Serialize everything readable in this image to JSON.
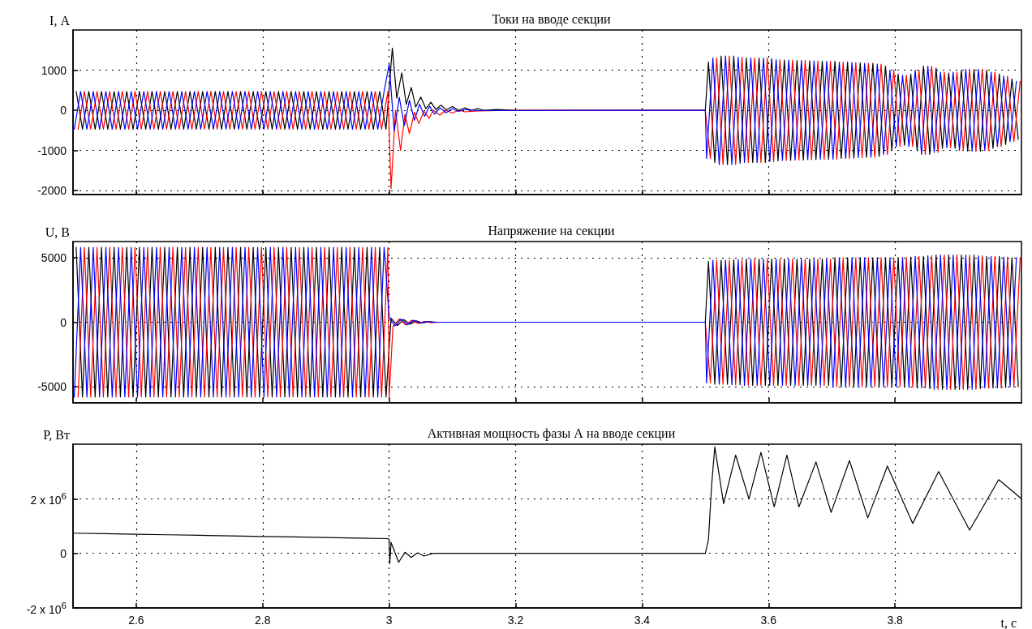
{
  "chart_data": [
    {
      "type": "line",
      "title": "Токи на вводе секции",
      "ylabel": "I, А",
      "xlim": [
        2.5,
        4.0
      ],
      "xticks": [
        2.6,
        2.8,
        3,
        3.2,
        3.4,
        3.6,
        3.8
      ],
      "ylim": [
        -2100,
        2000
      ],
      "yticks": [
        -2000,
        -1000,
        0,
        1000
      ],
      "grid": true,
      "marker": "none",
      "line_style": "solid",
      "tick_labels": "y",
      "series": [
        {
          "color": "#000000",
          "x": [
            2.505,
            2.515,
            2.525,
            2.535,
            2.545,
            2.555,
            2.565,
            2.575,
            2.585,
            2.595,
            2.605,
            2.615,
            2.625,
            2.635,
            2.645,
            2.655,
            2.665,
            2.675,
            2.685,
            2.695,
            2.705,
            2.715,
            2.725,
            2.735,
            2.745,
            2.755,
            2.765,
            2.775,
            2.785,
            2.795,
            2.805,
            2.815,
            2.825,
            2.835,
            2.845,
            2.855,
            2.865,
            2.875,
            2.885,
            2.895,
            2.905,
            2.915,
            2.925,
            2.935,
            2.945,
            2.955,
            2.965,
            2.975,
            2.985,
            2.995,
            3.005,
            3.012,
            3.02,
            3.027,
            3.035,
            3.042,
            3.05,
            3.058,
            3.066,
            3.074,
            3.082,
            3.09,
            3.1,
            3.11,
            3.12,
            3.13,
            3.14,
            3.15,
            3.17,
            3.2,
            3.5,
            3.505,
            3.515,
            3.525,
            3.535,
            3.545,
            3.555,
            3.565,
            3.575,
            3.585,
            3.595,
            3.605,
            3.615,
            3.625,
            3.635,
            3.645,
            3.655,
            3.665,
            3.675,
            3.685,
            3.695,
            3.705,
            3.715,
            3.725,
            3.735,
            3.745,
            3.755,
            3.765,
            3.775,
            3.785,
            3.795,
            3.805,
            3.815,
            3.825,
            3.835,
            3.845,
            3.855,
            3.865,
            3.875,
            3.885,
            3.895,
            3.905,
            3.915,
            3.925,
            3.935,
            3.945,
            3.955,
            3.965,
            3.975,
            3.985,
            3.995
          ],
          "values": [
            470,
            -470,
            470,
            -470,
            470,
            -470,
            470,
            -470,
            470,
            -470,
            470,
            -470,
            470,
            -470,
            470,
            -470,
            470,
            -470,
            470,
            -470,
            470,
            -470,
            470,
            -470,
            470,
            -470,
            470,
            -470,
            470,
            -470,
            470,
            -470,
            470,
            -470,
            470,
            -470,
            470,
            -470,
            470,
            -470,
            470,
            -470,
            470,
            -470,
            470,
            -470,
            470,
            -470,
            470,
            -470,
            1550,
            300,
            930,
            150,
            570,
            80,
            330,
            40,
            200,
            20,
            130,
            10,
            90,
            0,
            60,
            0,
            40,
            0,
            20,
            0,
            0,
            1200,
            -1300,
            1350,
            -1350,
            1350,
            -1320,
            1300,
            -1300,
            1300,
            -1300,
            1280,
            -1260,
            1250,
            -1250,
            1240,
            -1240,
            1230,
            -1230,
            1220,
            -1220,
            1220,
            -1200,
            1200,
            -1190,
            1180,
            -1170,
            1170,
            -1150,
            1100,
            -1000,
            900,
            -870,
            900,
            -1000,
            1100,
            -1100,
            1050,
            -950,
            930,
            -950,
            1000,
            -1020,
            1020,
            -1020,
            1000,
            -950,
            900,
            -850,
            780,
            -720
          ]
        },
        {
          "color": "#ff0000",
          "x": [
            2.508,
            2.518,
            2.528,
            2.538,
            2.548,
            2.558,
            2.568,
            2.578,
            2.588,
            2.598,
            2.608,
            2.618,
            2.628,
            2.638,
            2.648,
            2.658,
            2.668,
            2.678,
            2.688,
            2.698,
            2.708,
            2.718,
            2.728,
            2.738,
            2.748,
            2.758,
            2.768,
            2.778,
            2.788,
            2.798,
            2.808,
            2.818,
            2.828,
            2.838,
            2.848,
            2.858,
            2.868,
            2.878,
            2.888,
            2.898,
            2.908,
            2.918,
            2.928,
            2.938,
            2.948,
            2.958,
            2.968,
            2.978,
            2.988,
            2.998,
            3.003,
            3.01,
            3.018,
            3.025,
            3.032,
            3.04,
            3.047,
            3.055,
            3.063,
            3.07,
            3.08,
            3.09,
            3.1,
            3.11,
            3.12,
            3.14,
            3.17,
            3.2,
            3.5,
            3.508,
            3.518,
            3.528,
            3.538,
            3.548,
            3.558,
            3.568,
            3.578,
            3.588,
            3.598,
            3.608,
            3.618,
            3.628,
            3.638,
            3.648,
            3.658,
            3.668,
            3.678,
            3.688,
            3.698,
            3.708,
            3.718,
            3.728,
            3.738,
            3.748,
            3.758,
            3.768,
            3.778,
            3.788,
            3.798,
            3.808,
            3.818,
            3.828,
            3.838,
            3.848,
            3.858,
            3.868,
            3.878,
            3.888,
            3.898,
            3.908,
            3.918,
            3.928,
            3.938,
            3.948,
            3.958,
            3.968,
            3.978,
            3.988,
            3.998
          ],
          "values": [
            -470,
            470,
            -470,
            470,
            -470,
            470,
            -470,
            470,
            -470,
            470,
            -470,
            470,
            -470,
            470,
            -470,
            470,
            -470,
            470,
            -470,
            470,
            -470,
            470,
            -470,
            470,
            -470,
            470,
            -470,
            470,
            -470,
            470,
            -470,
            470,
            -470,
            470,
            -470,
            470,
            -470,
            470,
            -470,
            470,
            -470,
            470,
            -470,
            470,
            -470,
            470,
            -470,
            470,
            -470,
            470,
            -1950,
            0,
            -1000,
            -100,
            -580,
            -50,
            -330,
            -20,
            -200,
            0,
            -120,
            0,
            -70,
            0,
            -40,
            -20,
            -10,
            0,
            0,
            -1200,
            1300,
            -1350,
            1350,
            -1350,
            1320,
            -1300,
            1300,
            -1300,
            1300,
            -1280,
            1260,
            -1250,
            1250,
            -1240,
            1240,
            -1230,
            1230,
            -1220,
            1220,
            -1220,
            1200,
            -1200,
            1190,
            -1180,
            1170,
            -1170,
            1150,
            -1100,
            1000,
            -900,
            870,
            -900,
            1000,
            -1100,
            1100,
            -1050,
            950,
            -930,
            950,
            -1000,
            1020,
            -1020,
            1020,
            -1000,
            950,
            -900,
            850,
            -780,
            720
          ]
        },
        {
          "color": "#0000ff",
          "x": [
            2.502,
            2.512,
            2.522,
            2.532,
            2.542,
            2.552,
            2.562,
            2.572,
            2.582,
            2.592,
            2.602,
            2.612,
            2.622,
            2.632,
            2.642,
            2.652,
            2.662,
            2.672,
            2.682,
            2.692,
            2.702,
            2.712,
            2.722,
            2.732,
            2.742,
            2.752,
            2.762,
            2.772,
            2.782,
            2.792,
            2.802,
            2.812,
            2.822,
            2.832,
            2.842,
            2.852,
            2.862,
            2.872,
            2.882,
            2.892,
            2.902,
            2.912,
            2.922,
            2.932,
            2.942,
            2.952,
            2.962,
            2.972,
            2.982,
            2.992,
            3.0,
            3.008,
            3.016,
            3.024,
            3.032,
            3.04,
            3.048,
            3.056,
            3.064,
            3.072,
            3.08,
            3.09,
            3.1,
            3.11,
            3.12,
            3.14,
            3.5,
            3.502,
            3.512,
            3.522,
            3.532,
            3.542,
            3.552,
            3.562,
            3.572,
            3.582,
            3.592,
            3.602,
            3.612,
            3.622,
            3.632,
            3.642,
            3.652,
            3.662,
            3.672,
            3.682,
            3.692,
            3.702,
            3.712,
            3.722,
            3.732,
            3.742,
            3.752,
            3.762,
            3.772,
            3.782,
            3.792,
            3.802,
            3.812,
            3.822,
            3.832,
            3.842,
            3.852,
            3.862,
            3.872,
            3.882,
            3.892,
            3.902,
            3.912,
            3.922,
            3.932,
            3.942,
            3.952,
            3.962,
            3.972,
            3.982,
            3.992
          ],
          "values": [
            -470,
            470,
            -470,
            470,
            -470,
            470,
            -470,
            470,
            -470,
            470,
            -470,
            470,
            -470,
            470,
            -470,
            470,
            -470,
            470,
            -470,
            470,
            -470,
            470,
            -470,
            470,
            -470,
            470,
            -470,
            470,
            -470,
            470,
            -470,
            470,
            -470,
            470,
            -470,
            470,
            -470,
            470,
            -470,
            470,
            -470,
            470,
            -470,
            470,
            -470,
            470,
            -470,
            470,
            -470,
            470,
            1150,
            -520,
            320,
            -380,
            250,
            -250,
            150,
            -150,
            100,
            -100,
            60,
            -60,
            40,
            -30,
            20,
            -10,
            0,
            -1200,
            1300,
            -1350,
            1350,
            -1350,
            1320,
            -1300,
            1300,
            -1300,
            1300,
            -1280,
            1260,
            -1250,
            1250,
            -1240,
            1240,
            -1230,
            1230,
            -1220,
            1220,
            -1220,
            1200,
            -1200,
            1190,
            -1180,
            1170,
            -1170,
            1150,
            -1100,
            1000,
            -900,
            870,
            -900,
            1000,
            -1100,
            1100,
            -1050,
            950,
            -930,
            950,
            -1000,
            1020,
            -1020,
            1020,
            -1000,
            950,
            -900,
            850,
            -780,
            720
          ]
        }
      ]
    },
    {
      "type": "line",
      "title": "Напряжение на секции",
      "ylabel": "U, В",
      "xlim": [
        2.5,
        4.0
      ],
      "xticks": [
        2.6,
        2.8,
        3,
        3.2,
        3.4,
        3.6,
        3.8
      ],
      "ylim": [
        -6250,
        6250
      ],
      "yticks": [
        -5000,
        0,
        5000
      ],
      "grid": true,
      "marker": "none",
      "line_style": "solid",
      "tick_labels": "y",
      "series": [
        {
          "color": "#000000",
          "x": [
            2.505,
            2.515,
            2.525,
            2.535,
            2.545,
            2.555,
            2.565,
            2.575,
            2.585,
            2.595,
            2.605,
            2.615,
            2.625,
            2.635,
            2.645,
            2.655,
            2.665,
            2.675,
            2.685,
            2.695,
            2.705,
            2.715,
            2.725,
            2.735,
            2.745,
            2.755,
            2.765,
            2.775,
            2.785,
            2.795,
            2.805,
            2.815,
            2.825,
            2.835,
            2.845,
            2.855,
            2.865,
            2.875,
            2.885,
            2.895,
            2.905,
            2.915,
            2.925,
            2.935,
            2.945,
            2.955,
            2.965,
            2.975,
            2.985,
            2.995,
            3.003,
            3.013,
            3.023,
            3.033,
            3.043,
            3.053,
            3.063,
            3.075,
            3.5,
            3.505,
            3.515,
            3.525,
            3.535,
            3.545,
            3.555,
            3.565,
            3.575,
            3.585,
            3.595,
            3.605,
            3.615,
            3.625,
            3.635,
            3.645,
            3.655,
            3.665,
            3.675,
            3.685,
            3.695,
            3.705,
            3.715,
            3.725,
            3.735,
            3.745,
            3.755,
            3.765,
            3.775,
            3.785,
            3.795,
            3.805,
            3.815,
            3.825,
            3.835,
            3.845,
            3.855,
            3.865,
            3.875,
            3.885,
            3.895,
            3.905,
            3.915,
            3.925,
            3.935,
            3.945,
            3.955,
            3.965,
            3.975,
            3.985,
            3.995
          ],
          "values": [
            5800,
            -5800,
            5800,
            -5800,
            5800,
            -5800,
            5800,
            -5800,
            5800,
            -5800,
            5800,
            -5800,
            5800,
            -5800,
            5800,
            -5800,
            5800,
            -5800,
            5800,
            -5800,
            5800,
            -5800,
            5800,
            -5800,
            5800,
            -5800,
            5800,
            -5800,
            5800,
            -5800,
            5800,
            -5800,
            5800,
            -5800,
            5800,
            -5800,
            5800,
            -5800,
            5800,
            -5800,
            5800,
            -5800,
            5800,
            -5800,
            5800,
            -5800,
            5800,
            -5800,
            5800,
            -5800,
            300,
            -250,
            200,
            -150,
            100,
            -60,
            40,
            0,
            0,
            4700,
            -4800,
            4800,
            -4800,
            4850,
            -4850,
            4900,
            -4900,
            4900,
            -4900,
            4900,
            -4900,
            4900,
            -4900,
            4900,
            -4900,
            4900,
            -4900,
            4900,
            -4900,
            5000,
            -5000,
            5000,
            -5000,
            5000,
            -5000,
            5000,
            -5000,
            5000,
            -5000,
            5000,
            -5000,
            5050,
            -5100,
            5100,
            -5150,
            5200,
            -5200,
            5200,
            -5200,
            5200,
            -5200,
            5200,
            -5150,
            5100,
            -5100,
            5100,
            -5050,
            5000,
            -5000
          ]
        },
        {
          "color": "#ff0000",
          "x": [
            2.508,
            2.518,
            2.528,
            2.538,
            2.548,
            2.558,
            2.568,
            2.578,
            2.588,
            2.598,
            2.608,
            2.618,
            2.628,
            2.638,
            2.648,
            2.658,
            2.668,
            2.678,
            2.688,
            2.698,
            2.708,
            2.718,
            2.728,
            2.738,
            2.748,
            2.758,
            2.768,
            2.778,
            2.788,
            2.798,
            2.808,
            2.818,
            2.828,
            2.838,
            2.848,
            2.858,
            2.868,
            2.878,
            2.888,
            2.898,
            2.908,
            2.918,
            2.928,
            2.938,
            2.948,
            2.958,
            2.968,
            2.978,
            2.988,
            2.998,
            3.0,
            3.006,
            3.016,
            3.026,
            3.036,
            3.046,
            3.056,
            3.066,
            3.08,
            3.5,
            3.508,
            3.518,
            3.528,
            3.538,
            3.548,
            3.558,
            3.568,
            3.578,
            3.588,
            3.598,
            3.608,
            3.618,
            3.628,
            3.638,
            3.648,
            3.658,
            3.668,
            3.678,
            3.688,
            3.698,
            3.708,
            3.718,
            3.728,
            3.738,
            3.748,
            3.758,
            3.768,
            3.778,
            3.788,
            3.798,
            3.808,
            3.818,
            3.828,
            3.838,
            3.848,
            3.858,
            3.868,
            3.878,
            3.888,
            3.898,
            3.908,
            3.918,
            3.928,
            3.938,
            3.948,
            3.958,
            3.968,
            3.978,
            3.988,
            3.998
          ],
          "values": [
            -5800,
            5800,
            -5800,
            5800,
            -5800,
            5800,
            -5800,
            5800,
            -5800,
            5800,
            -5800,
            5800,
            -5800,
            5800,
            -5800,
            5800,
            -5800,
            5800,
            -5800,
            5800,
            -5800,
            5800,
            -5800,
            5800,
            -5800,
            5800,
            -5800,
            5800,
            -5800,
            5800,
            -5800,
            5800,
            -5800,
            5800,
            -5800,
            5800,
            -5800,
            5800,
            -5800,
            5800,
            -5800,
            5800,
            -5800,
            5800,
            -5800,
            5800,
            -5800,
            5800,
            -5800,
            5800,
            -5800,
            -300,
            250,
            -200,
            150,
            -100,
            60,
            -40,
            0,
            0,
            -4700,
            4800,
            -4800,
            4800,
            -4850,
            4850,
            -4900,
            4900,
            -4900,
            4900,
            -4900,
            4900,
            -4900,
            4900,
            -4900,
            4900,
            -4900,
            4900,
            -4900,
            4900,
            -5000,
            5000,
            -5000,
            5000,
            -5000,
            5000,
            -5000,
            5000,
            -5000,
            5000,
            -5000,
            5000,
            -5050,
            5100,
            -5100,
            5150,
            -5200,
            5200,
            -5200,
            5200,
            -5200,
            5200,
            -5200,
            5150,
            -5100,
            5100,
            -5100,
            5050,
            -5000,
            5000
          ]
        },
        {
          "color": "#0000ff",
          "x": [
            2.502,
            2.512,
            2.522,
            2.532,
            2.542,
            2.552,
            2.562,
            2.572,
            2.582,
            2.592,
            2.602,
            2.612,
            2.622,
            2.632,
            2.642,
            2.652,
            2.662,
            2.672,
            2.682,
            2.692,
            2.702,
            2.712,
            2.722,
            2.732,
            2.742,
            2.752,
            2.762,
            2.772,
            2.782,
            2.792,
            2.802,
            2.812,
            2.822,
            2.832,
            2.842,
            2.852,
            2.862,
            2.872,
            2.882,
            2.892,
            2.902,
            2.912,
            2.922,
            2.932,
            2.942,
            2.952,
            2.962,
            2.972,
            2.982,
            2.992,
            3.0,
            3.009,
            3.019,
            3.029,
            3.039,
            3.049,
            3.059,
            3.07,
            3.5,
            3.502,
            3.512,
            3.522,
            3.532,
            3.542,
            3.552,
            3.562,
            3.572,
            3.582,
            3.592,
            3.602,
            3.612,
            3.622,
            3.632,
            3.642,
            3.652,
            3.662,
            3.672,
            3.682,
            3.692,
            3.702,
            3.712,
            3.722,
            3.732,
            3.742,
            3.752,
            3.762,
            3.772,
            3.782,
            3.792,
            3.802,
            3.812,
            3.822,
            3.832,
            3.842,
            3.852,
            3.862,
            3.872,
            3.882,
            3.892,
            3.902,
            3.912,
            3.922,
            3.932,
            3.942,
            3.952,
            3.962,
            3.972,
            3.982,
            3.992
          ],
          "values": [
            -5800,
            5800,
            -5800,
            5800,
            -5800,
            5800,
            -5800,
            5800,
            -5800,
            5800,
            -5800,
            5800,
            -5800,
            5800,
            -5800,
            5800,
            -5800,
            5800,
            -5800,
            5800,
            -5800,
            5800,
            -5800,
            5800,
            -5800,
            5800,
            -5800,
            5800,
            -5800,
            5800,
            -5800,
            5800,
            -5800,
            5800,
            -5800,
            5800,
            -5800,
            5800,
            -5800,
            5800,
            -5800,
            5800,
            -5800,
            5800,
            -5800,
            5800,
            -5800,
            5800,
            -5800,
            5800,
            400,
            -300,
            250,
            -200,
            150,
            -80,
            50,
            0,
            0,
            -4700,
            4800,
            -4800,
            4800,
            -4850,
            4850,
            -4900,
            4900,
            -4900,
            4900,
            -4900,
            4900,
            -4900,
            4900,
            -4900,
            4900,
            -4900,
            4900,
            -4900,
            4900,
            -5000,
            5000,
            -5000,
            5000,
            -5000,
            5000,
            -5000,
            5000,
            -5000,
            5000,
            -5000,
            5000,
            -5050,
            5100,
            -5100,
            5150,
            -5200,
            5200,
            -5200,
            5200,
            -5200,
            5200,
            -5200,
            5150,
            -5100,
            5100,
            -5100,
            5050,
            -5000,
            5000
          ]
        }
      ]
    },
    {
      "type": "line",
      "title": "Активная мощность фазы А на вводе секции",
      "ylabel": "P, Вт",
      "xlabel": "t, с",
      "xlim": [
        2.5,
        4.0
      ],
      "xticks": [
        2.6,
        2.8,
        3,
        3.2,
        3.4,
        3.6,
        3.8
      ],
      "ylim": [
        -2000000,
        4000000
      ],
      "yticks": [
        {
          "value": -2000000,
          "label": "-2 x 10$^{6}$"
        },
        0,
        {
          "value": 2000000,
          "label": "2 x 10$^{6}$"
        }
      ],
      "grid": true,
      "marker": "none",
      "line_style": "solid",
      "series": [
        {
          "color": "#000000",
          "x": [
            2.5,
            2.55,
            2.6,
            2.65,
            2.7,
            2.75,
            2.8,
            2.85,
            2.9,
            2.95,
            2.998,
            3.0,
            3.001,
            3.003,
            3.008,
            3.015,
            3.025,
            3.035,
            3.045,
            3.055,
            3.07,
            3.5,
            3.505,
            3.51,
            3.515,
            3.529,
            3.548,
            3.569,
            3.588,
            3.609,
            3.629,
            3.648,
            3.675,
            3.699,
            3.728,
            3.757,
            3.788,
            3.828,
            3.869,
            3.918,
            3.964,
            4.0
          ],
          "values": [
            740000,
            720000,
            700000,
            680000,
            660000,
            640000,
            620000,
            600000,
            580000,
            560000,
            540000,
            500000,
            -380000,
            400000,
            100000,
            -330000,
            40000,
            -150000,
            20000,
            -100000,
            0,
            0,
            500000,
            2500000,
            3900000,
            1820000,
            3600000,
            2000000,
            3700000,
            1700000,
            3600000,
            1700000,
            3350000,
            1500000,
            3400000,
            1300000,
            3200000,
            1100000,
            3000000,
            850000,
            2700000,
            2000000
          ]
        }
      ]
    }
  ]
}
